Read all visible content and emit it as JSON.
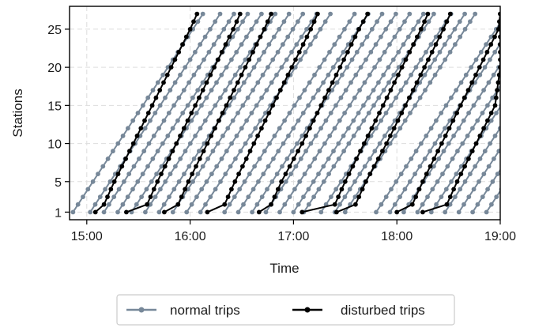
{
  "chart_data": {
    "type": "line",
    "xlabel": "Time",
    "ylabel": "Stations",
    "x_unit": "hours",
    "xlim": [
      "14:50",
      "19:00"
    ],
    "ylim": [
      0,
      28
    ],
    "x_ticks": [
      "15:00",
      "16:00",
      "17:00",
      "18:00",
      "19:00"
    ],
    "y_ticks": [
      1,
      5,
      10,
      15,
      20,
      25
    ],
    "grid": true,
    "legend_position": "bottom-center",
    "stations": 27,
    "series": [
      {
        "name": "normal trips",
        "color": "#778899",
        "line_width": 2,
        "trip_start_times": [
          "14:52",
          "15:02",
          "15:10",
          "15:18",
          "15:26",
          "15:34",
          "15:42",
          "15:50",
          "15:58",
          "16:06",
          "16:20",
          "16:28",
          "16:36",
          "16:44",
          "16:52",
          "17:00",
          "17:06",
          "17:16",
          "17:24",
          "17:30",
          "17:48",
          "17:56",
          "18:04",
          "18:12",
          "18:20",
          "18:28",
          "18:36",
          "18:44",
          "18:52"
        ],
        "minutes_per_station": 2.9
      },
      {
        "name": "disturbed trips",
        "color": "#000000",
        "line_width": 2,
        "trips": [
          {
            "y": [
              1,
              2,
              5,
              10,
              15,
              20,
              25,
              27
            ],
            "x": [
              "15:05",
              "15:10",
              "15:16",
              "15:27",
              "15:38",
              "15:49",
              "16:00",
              "16:04"
            ]
          },
          {
            "y": [
              1,
              2,
              5,
              10,
              15,
              20,
              25,
              27
            ],
            "x": [
              "15:23",
              "15:35",
              "15:41",
              "15:52",
              "16:03",
              "16:14",
              "16:25",
              "16:29"
            ]
          },
          {
            "y": [
              1,
              2,
              5,
              10,
              15,
              20,
              25,
              27
            ],
            "x": [
              "15:45",
              "15:53",
              "15:59",
              "16:10",
              "16:21",
              "16:32",
              "16:43",
              "16:47"
            ]
          },
          {
            "y": [
              1,
              2,
              5,
              10,
              15,
              20,
              25,
              27
            ],
            "x": [
              "16:10",
              "16:20",
              "16:26",
              "16:37",
              "16:48",
              "16:59",
              "17:10",
              "17:14"
            ]
          },
          {
            "y": [
              1,
              2,
              5,
              10,
              15,
              20,
              25,
              27
            ],
            "x": [
              "16:40",
              "16:47",
              "16:53",
              "17:05",
              "17:16",
              "17:27",
              "17:38",
              "17:43"
            ]
          },
          {
            "y": [
              1,
              2,
              5,
              10,
              15,
              20,
              25,
              27
            ],
            "x": [
              "17:05",
              "17:24",
              "17:30",
              "17:41",
              "17:52",
              "18:03",
              "18:14",
              "18:18"
            ]
          },
          {
            "y": [
              1,
              2,
              5,
              10,
              15,
              20,
              25,
              27
            ],
            "x": [
              "17:25",
              "17:36",
              "17:42",
              "17:54",
              "18:05",
              "18:16",
              "18:27",
              "18:31"
            ]
          },
          {
            "y": [
              1,
              2,
              5,
              10,
              15,
              20,
              25,
              27
            ],
            "x": [
              "18:00",
              "18:09",
              "18:15",
              "18:26",
              "18:37",
              "18:48",
              "18:59",
              "19:00"
            ]
          },
          {
            "y": [
              1,
              2,
              5,
              10,
              15,
              20,
              25,
              27
            ],
            "x": [
              "18:15",
              "18:29",
              "18:35",
              "18:46",
              "18:57",
              "19:00",
              "19:00",
              "19:00"
            ]
          }
        ]
      }
    ]
  }
}
